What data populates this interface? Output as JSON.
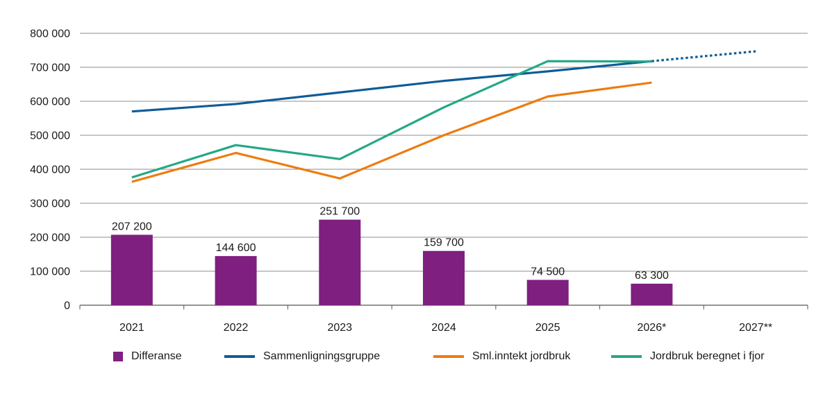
{
  "chart_data": {
    "type": "bar+line",
    "categories": [
      "2021",
      "2022",
      "2023",
      "2024",
      "2025",
      "2026*",
      "2027**"
    ],
    "ylim": [
      0,
      800000
    ],
    "yticks": [
      0,
      100000,
      200000,
      300000,
      400000,
      500000,
      600000,
      700000,
      800000
    ],
    "ytick_labels": [
      "0",
      "100 000",
      "200 000",
      "300 000",
      "400 000",
      "500 000",
      "600 000",
      "700 000",
      "800 000"
    ],
    "grid": true,
    "legend_position": "bottom",
    "bars": {
      "name": "Differanse",
      "color": "#7f1f80",
      "values": [
        207200,
        144600,
        251700,
        159700,
        74500,
        63300,
        null
      ],
      "labels": [
        "207 200",
        "144 600",
        "251 700",
        "159 700",
        "74 500",
        "63 300",
        ""
      ]
    },
    "series": [
      {
        "name": "Sammenligningsgruppe",
        "color": "#0e5c97",
        "values": [
          570000,
          592000,
          626000,
          660000,
          688000,
          718000,
          747000
        ],
        "dotted_from_index": 5
      },
      {
        "name": "Sml.inntekt jordbruk",
        "color": "#ee7b10",
        "values": [
          363000,
          448000,
          373000,
          500000,
          614000,
          655000,
          null
        ]
      },
      {
        "name": "Jordbruk beregnet i fjor",
        "color": "#24a886",
        "values": [
          376000,
          471000,
          430000,
          582000,
          718000,
          717000,
          null
        ]
      }
    ]
  }
}
